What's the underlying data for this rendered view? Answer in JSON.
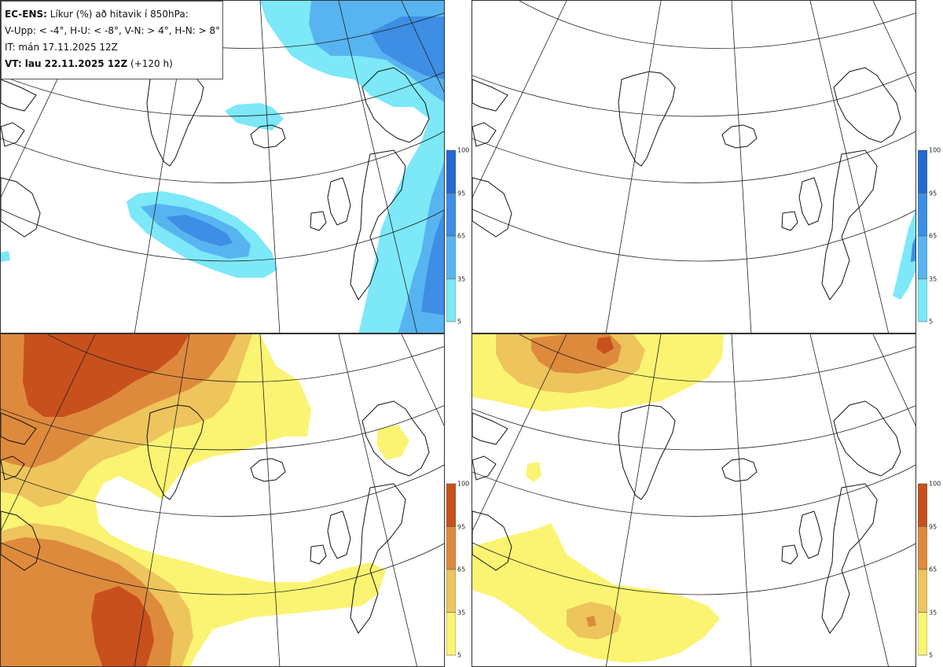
{
  "legend": {
    "line1_bold": "EC-ENS:",
    "line1_rest": " Líkur (%) að hitavik í 850hPa:",
    "line2": "V-Upp: < -4°, H-U: < -8°, V-N: > 4°, H-N: > 8°",
    "line3": "IT: mán 17.11.2025 12Z",
    "line4_bold": "VT: lau 22.11.2025 12Z",
    "line4_rest": " (+120 h)"
  },
  "panels": [
    {
      "id": "V-Upp",
      "quantity": "probability temp anomaly < -4°",
      "palette": "cold"
    },
    {
      "id": "H-U",
      "quantity": "probability temp anomaly < -8°",
      "palette": "cold"
    },
    {
      "id": "V-N",
      "quantity": "probability temp anomaly > 4°",
      "palette": "warm"
    },
    {
      "id": "H-N",
      "quantity": "probability temp anomaly > 8°",
      "palette": "warm"
    }
  ],
  "colorbar": {
    "ticks": [
      "100",
      "95",
      "65",
      "35",
      "5"
    ],
    "cold_colors": [
      "#2569cf",
      "#3d8ee4",
      "#57b4f0",
      "#7ce8f8"
    ],
    "warm_colors": [
      "#c8501c",
      "#de8a3c",
      "#eec45c",
      "#fbf472"
    ]
  },
  "colors": {
    "coast": "#111111",
    "grid": "#222222",
    "panel_border": "#333333"
  }
}
